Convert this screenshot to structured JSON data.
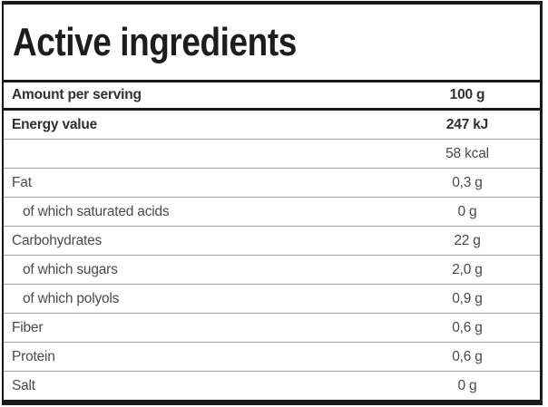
{
  "header": {
    "title": "Active ingredients"
  },
  "table": {
    "header_row": {
      "label": "Amount per serving",
      "value": "100 g"
    },
    "rows": [
      {
        "label": "Energy value",
        "value": "247 kJ",
        "bold": true,
        "indent": false
      },
      {
        "label": "",
        "value": "58 kcal",
        "bold": false,
        "indent": false
      },
      {
        "label": "Fat",
        "value": "0,3 g",
        "bold": false,
        "indent": false
      },
      {
        "label": "of which saturated acids",
        "value": "0 g",
        "bold": false,
        "indent": true
      },
      {
        "label": "Carbohydrates",
        "value": "22 g",
        "bold": false,
        "indent": false
      },
      {
        "label": "of which sugars",
        "value": "2,0 g",
        "bold": false,
        "indent": true
      },
      {
        "label": "of which polyols",
        "value": "0,9 g",
        "bold": false,
        "indent": true
      },
      {
        "label": "Fiber",
        "value": "0,6 g",
        "bold": false,
        "indent": false
      },
      {
        "label": "Protein",
        "value": "0,6 g",
        "bold": false,
        "indent": false
      },
      {
        "label": "Salt",
        "value": "0 g",
        "bold": false,
        "indent": false
      }
    ],
    "colors": {
      "border": "#1a1a1a",
      "separator": "#a0a0a0",
      "text": "#4a4a4a",
      "text_bold": "#303030",
      "title": "#1d1d1d",
      "background": "#ffffff"
    }
  }
}
